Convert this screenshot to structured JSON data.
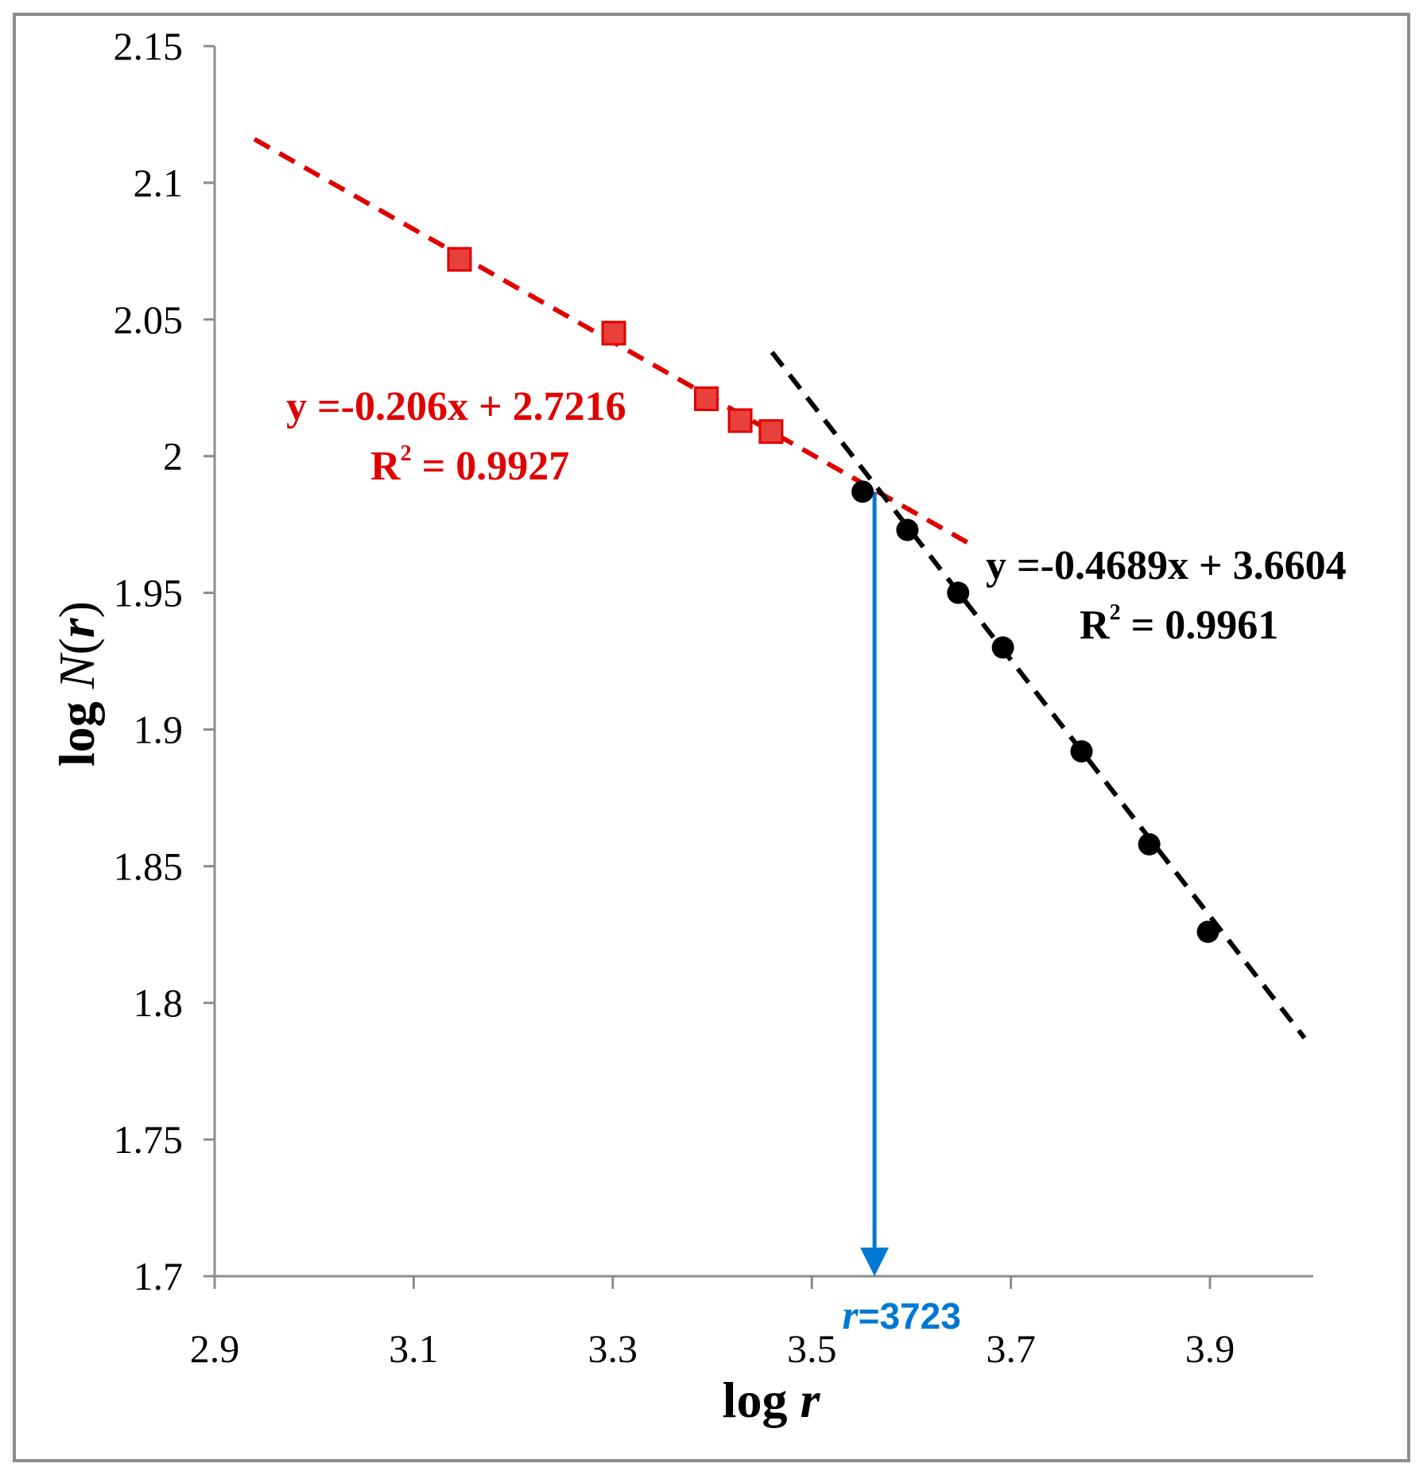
{
  "chart_data": {
    "type": "scatter",
    "xlabel": {
      "prefix": "log ",
      "variable": "r"
    },
    "ylabel": {
      "prefix": "log ",
      "variable": "N",
      "paren_open": "(",
      "arg": "r",
      "paren_close": ")"
    },
    "xlim": [
      2.9,
      4.0
    ],
    "ylim": [
      1.7,
      2.15
    ],
    "x_ticks": [
      {
        "value": 2.9,
        "label": "2.9"
      },
      {
        "value": 3.1,
        "label": "3.1"
      },
      {
        "value": 3.3,
        "label": "3.3"
      },
      {
        "value": 3.5,
        "label": "3.5"
      },
      {
        "value": 3.7,
        "label": "3.7"
      },
      {
        "value": 3.9,
        "label": "3.9"
      }
    ],
    "y_ticks": [
      {
        "value": 1.7,
        "label": "1.7"
      },
      {
        "value": 1.75,
        "label": "1.75"
      },
      {
        "value": 1.8,
        "label": "1.8"
      },
      {
        "value": 1.85,
        "label": "1.85"
      },
      {
        "value": 1.9,
        "label": "1.9"
      },
      {
        "value": 1.95,
        "label": "1.95"
      },
      {
        "value": 2.0,
        "label": "2"
      },
      {
        "value": 2.05,
        "label": "2.05"
      },
      {
        "value": 2.1,
        "label": "2.1"
      },
      {
        "value": 2.15,
        "label": "2.15"
      }
    ],
    "grid": false,
    "series": [
      {
        "marker": "square",
        "color": "#e8403a",
        "edge_color": "#e00000",
        "points": [
          {
            "x": 3.146,
            "y": 2.072
          },
          {
            "x": 3.301,
            "y": 2.045
          },
          {
            "x": 3.394,
            "y": 2.021
          },
          {
            "x": 3.428,
            "y": 2.013
          },
          {
            "x": 3.459,
            "y": 2.009
          }
        ],
        "fit": {
          "slope": -0.206,
          "intercept": 2.7216,
          "x_range": [
            2.94,
            3.66
          ],
          "line_color": "#e00000",
          "equation": "y  =-0.206x + 2.7216",
          "r2_label": "R",
          "r2_exp": "2",
          "r2_value": " = 0.9927"
        }
      },
      {
        "marker": "circle",
        "color": "#000000",
        "points": [
          {
            "x": 3.551,
            "y": 1.987
          },
          {
            "x": 3.596,
            "y": 1.973
          },
          {
            "x": 3.647,
            "y": 1.95
          },
          {
            "x": 3.692,
            "y": 1.93
          },
          {
            "x": 3.771,
            "y": 1.892
          },
          {
            "x": 3.839,
            "y": 1.858
          },
          {
            "x": 3.898,
            "y": 1.826
          }
        ],
        "fit": {
          "slope": -0.4689,
          "intercept": 3.6604,
          "x_range": [
            3.46,
            3.995
          ],
          "line_color": "#000000",
          "equation": "y  =-0.4689x + 3.6604",
          "r2_label": "R",
          "r2_exp": "2",
          "r2_value": " = 0.9961"
        }
      }
    ],
    "annotation": {
      "x": 3.563,
      "from_y": 1.987,
      "to_y": 1.7,
      "color": "#0078d4",
      "var": "r",
      "text": "=3723"
    }
  }
}
